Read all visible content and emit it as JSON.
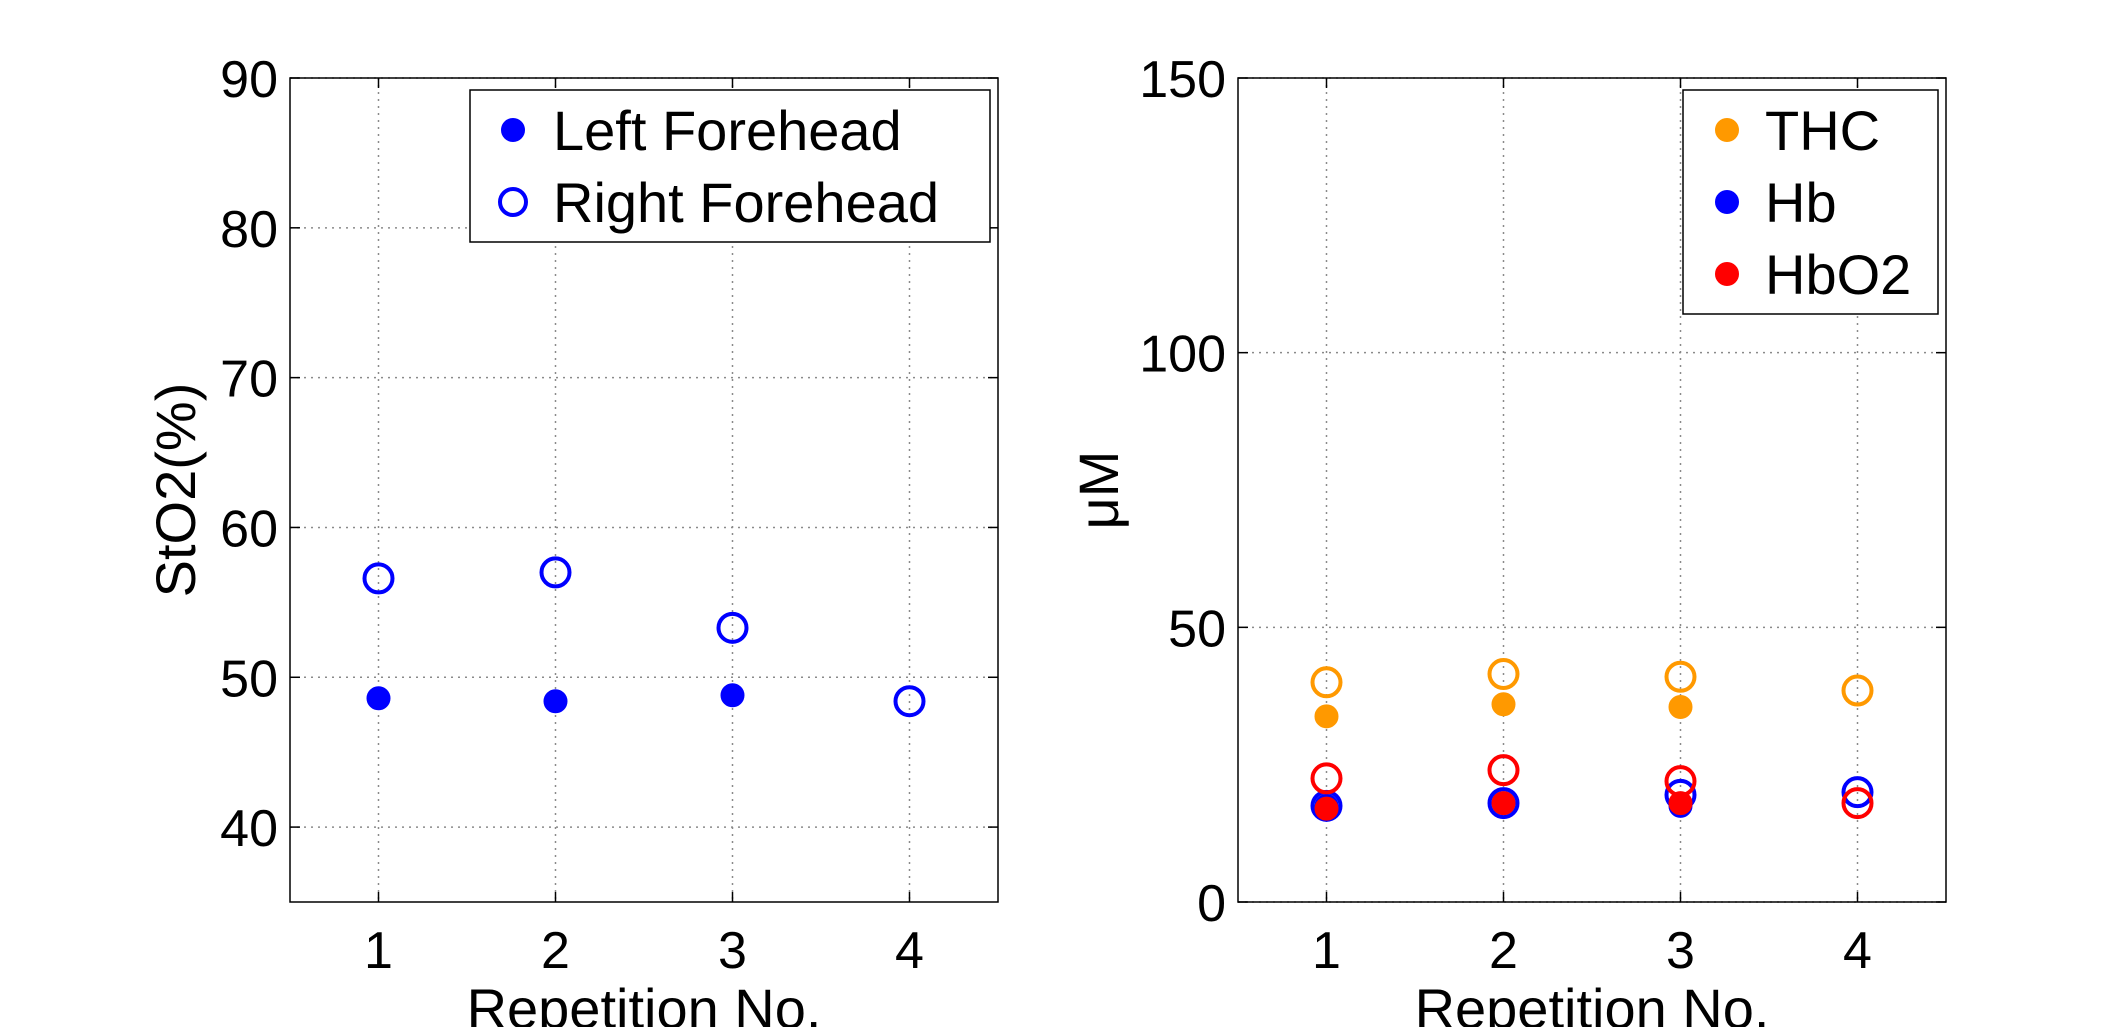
{
  "chart_data": [
    {
      "type": "scatter",
      "title": "",
      "xlabel": "Repetition No.",
      "ylabel": "StO2(%)",
      "xlim": [
        0.5,
        4.5
      ],
      "ylim": [
        35,
        90
      ],
      "xticks": [
        1,
        2,
        3,
        4
      ],
      "yticks": [
        40,
        50,
        60,
        70,
        80,
        90
      ],
      "grid": true,
      "legend_position": "top-right",
      "series": [
        {
          "name": "Left Forehead",
          "marker": "filled-circle",
          "color": "#0000ff",
          "x": [
            1,
            2,
            3
          ],
          "y": [
            48.6,
            48.4,
            48.8
          ]
        },
        {
          "name": "Right Forehead",
          "marker": "open-circle",
          "color": "#0000ff",
          "x": [
            1,
            2,
            3,
            4
          ],
          "y": [
            56.6,
            57.0,
            53.3,
            48.4
          ]
        }
      ]
    },
    {
      "type": "scatter",
      "title": "",
      "xlabel": "Repetition No.",
      "ylabel": "μM",
      "xlim": [
        0.5,
        4.5
      ],
      "ylim": [
        0,
        150
      ],
      "xticks": [
        1,
        2,
        3,
        4
      ],
      "yticks": [
        0,
        50,
        100,
        150
      ],
      "grid": true,
      "legend_position": "top-right",
      "legend": [
        {
          "name": "THC",
          "color": "#ff9900"
        },
        {
          "name": "Hb",
          "color": "#0000ff"
        },
        {
          "name": "HbO2",
          "color": "#ff0000"
        }
      ],
      "series": [
        {
          "group": "THC",
          "marker": "filled-circle",
          "color": "#ff9900",
          "x": [
            1,
            2,
            3
          ],
          "y": [
            33.8,
            36.0,
            35.5
          ]
        },
        {
          "group": "THC",
          "marker": "open-circle",
          "color": "#ff9900",
          "x": [
            1,
            2,
            3,
            4
          ],
          "y": [
            40.0,
            41.5,
            41.0,
            38.5
          ]
        },
        {
          "group": "Hb",
          "marker": "open-circle",
          "color": "#0000ff",
          "x": [
            1,
            2,
            3,
            4
          ],
          "y": [
            17.5,
            18.0,
            19.5,
            20.0
          ]
        },
        {
          "group": "Hb",
          "marker": "filled-circle",
          "color": "#0000ff",
          "x": [
            1,
            2,
            3
          ],
          "y": [
            17.5,
            18.0,
            17.5
          ]
        },
        {
          "group": "HbO2",
          "marker": "filled-circle",
          "color": "#ff0000",
          "x": [
            1,
            2,
            3
          ],
          "y": [
            17.0,
            18.0,
            18.0
          ]
        },
        {
          "group": "HbO2",
          "marker": "open-circle",
          "color": "#ff0000",
          "x": [
            1,
            2,
            3,
            4
          ],
          "y": [
            22.5,
            24.0,
            22.0,
            18.0
          ]
        }
      ]
    }
  ]
}
